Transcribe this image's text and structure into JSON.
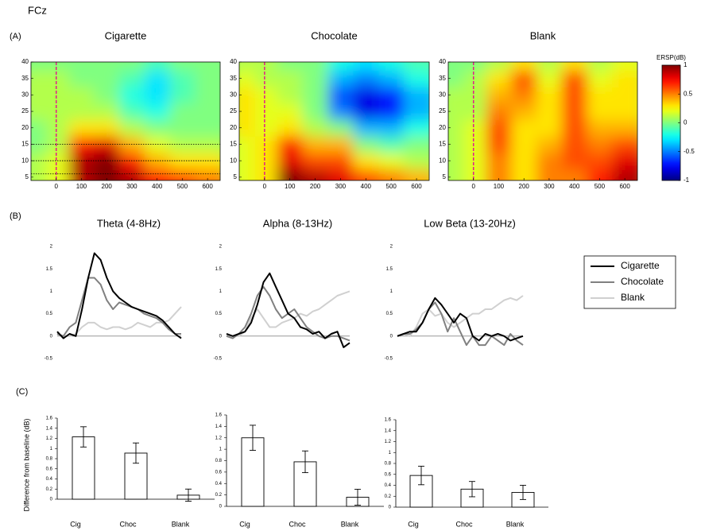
{
  "page_title": "FCz",
  "panel_labels": [
    "(A)",
    "(B)",
    "(C)"
  ],
  "colorbar": {
    "label": "ERSP(dB)",
    "clim": [
      -1,
      1
    ],
    "ticks": [
      -1,
      -0.5,
      0,
      0.5,
      1
    ]
  },
  "chart_data": [
    {
      "type": "heatmap",
      "title": "Cigarette",
      "x": [
        -75,
        0,
        100,
        200,
        300,
        400,
        500,
        600
      ],
      "y": [
        5,
        10,
        15,
        20,
        25,
        30,
        35,
        40
      ],
      "z": [
        [
          0.1,
          0.2,
          0.9,
          1.0,
          0.9,
          0.7,
          0.6,
          0.5
        ],
        [
          0.1,
          0.2,
          0.9,
          1.0,
          0.7,
          0.4,
          0.3,
          0.3
        ],
        [
          0.0,
          0.1,
          0.7,
          0.8,
          0.4,
          0.2,
          0.1,
          0.1
        ],
        [
          0.0,
          0.1,
          0.3,
          0.3,
          0.1,
          0.0,
          0.0,
          0.0
        ],
        [
          0.1,
          0.1,
          0.1,
          0.1,
          -0.1,
          -0.2,
          0.0,
          0.0
        ],
        [
          0.1,
          0.1,
          0.1,
          0.0,
          -0.2,
          -0.3,
          -0.1,
          0.0
        ],
        [
          0.1,
          0.1,
          0.0,
          0.0,
          -0.1,
          -0.3,
          -0.1,
          0.0
        ],
        [
          0.0,
          0.0,
          0.0,
          0.0,
          0.0,
          -0.1,
          0.0,
          0.0
        ]
      ],
      "xlim": [
        -100,
        650
      ],
      "xticks": [
        0,
        100,
        200,
        300,
        400,
        500,
        600
      ],
      "ylim": [
        4,
        40
      ],
      "yticks": [
        5,
        10,
        15,
        20,
        25,
        30,
        35,
        40
      ],
      "vline": 0,
      "hlines": [
        6,
        10,
        15
      ]
    },
    {
      "type": "heatmap",
      "title": "Chocolate",
      "x": [
        -75,
        0,
        100,
        200,
        300,
        400,
        500,
        600
      ],
      "y": [
        5,
        10,
        15,
        20,
        25,
        30,
        35,
        40
      ],
      "z": [
        [
          0.2,
          0.3,
          1.0,
          0.9,
          0.8,
          0.6,
          0.5,
          0.4
        ],
        [
          0.2,
          0.3,
          0.8,
          0.6,
          0.6,
          0.3,
          0.2,
          0.1
        ],
        [
          0.2,
          0.3,
          0.7,
          0.4,
          0.4,
          0.0,
          -0.1,
          0.0
        ],
        [
          0.3,
          0.2,
          0.3,
          0.1,
          0.0,
          -0.4,
          -0.4,
          -0.2
        ],
        [
          0.3,
          0.2,
          0.2,
          0.0,
          -0.5,
          -0.8,
          -0.7,
          -0.4
        ],
        [
          0.3,
          0.2,
          0.1,
          0.0,
          -0.6,
          -0.8,
          -0.7,
          -0.4
        ],
        [
          0.2,
          0.1,
          0.1,
          0.0,
          -0.4,
          -0.5,
          -0.4,
          -0.2
        ],
        [
          0.1,
          0.1,
          0.0,
          0.0,
          -0.2,
          -0.3,
          -0.2,
          -0.1
        ]
      ],
      "xlim": [
        -100,
        650
      ],
      "xticks": [
        0,
        100,
        200,
        300,
        400,
        500,
        600
      ],
      "ylim": [
        4,
        40
      ],
      "yticks": [
        5,
        10,
        15,
        20,
        25,
        30,
        35,
        40
      ],
      "vline": 0
    },
    {
      "type": "heatmap",
      "title": "Blank",
      "x": [
        -75,
        0,
        100,
        200,
        300,
        400,
        500,
        600
      ],
      "y": [
        5,
        10,
        15,
        20,
        25,
        30,
        35,
        40
      ],
      "z": [
        [
          0.1,
          0.2,
          0.5,
          0.3,
          0.5,
          0.5,
          0.7,
          0.9
        ],
        [
          0.1,
          0.2,
          0.5,
          0.3,
          0.5,
          0.6,
          0.6,
          0.8
        ],
        [
          0.1,
          0.2,
          0.6,
          0.3,
          0.4,
          0.6,
          0.5,
          0.6
        ],
        [
          0.1,
          0.2,
          0.6,
          0.3,
          0.3,
          0.6,
          0.4,
          0.4
        ],
        [
          0.1,
          0.1,
          0.5,
          0.4,
          0.3,
          0.6,
          0.3,
          0.3
        ],
        [
          0.1,
          0.1,
          0.4,
          0.5,
          0.3,
          0.6,
          0.3,
          0.3
        ],
        [
          0.0,
          0.1,
          0.3,
          0.6,
          0.2,
          0.6,
          0.2,
          0.3
        ],
        [
          0.0,
          0.0,
          0.1,
          0.3,
          0.1,
          0.3,
          0.1,
          0.2
        ]
      ],
      "xlim": [
        -100,
        650
      ],
      "xticks": [
        0,
        100,
        200,
        300,
        400,
        500,
        600
      ],
      "ylim": [
        4,
        40
      ],
      "yticks": [
        5,
        10,
        15,
        20,
        25,
        30,
        35,
        40
      ],
      "vline": 0
    },
    {
      "type": "line",
      "title": "Theta (4-8Hz)",
      "ylim": [
        -0.5,
        2
      ],
      "yticks": [
        -0.5,
        0,
        0.5,
        1,
        1.5,
        2
      ],
      "legend": "right",
      "series": [
        {
          "name": "Cigarette",
          "color": "#000000",
          "values": [
            0.1,
            -0.05,
            0.05,
            0.0,
            0.6,
            1.3,
            1.85,
            1.7,
            1.3,
            1.0,
            0.85,
            0.75,
            0.65,
            0.6,
            0.55,
            0.5,
            0.45,
            0.35,
            0.2,
            0.05,
            -0.05
          ]
        },
        {
          "name": "Chocolate",
          "color": "#808080",
          "values": [
            0.05,
            0.0,
            0.2,
            0.3,
            0.8,
            1.3,
            1.3,
            1.15,
            0.8,
            0.6,
            0.75,
            0.7,
            0.65,
            0.6,
            0.5,
            0.45,
            0.4,
            0.3,
            0.15,
            0.05,
            0.05
          ]
        },
        {
          "name": "Blank",
          "color": "#d0d0d0",
          "values": [
            0.05,
            0.0,
            0.0,
            0.05,
            0.2,
            0.3,
            0.3,
            0.2,
            0.15,
            0.2,
            0.2,
            0.15,
            0.2,
            0.3,
            0.25,
            0.2,
            0.3,
            0.3,
            0.35,
            0.5,
            0.65
          ]
        }
      ]
    },
    {
      "type": "line",
      "title": "Alpha (8-13Hz)",
      "ylim": [
        -0.5,
        2
      ],
      "yticks": [
        -0.5,
        0,
        0.5,
        1,
        1.5,
        2
      ],
      "series": [
        {
          "name": "Cigarette",
          "color": "#000000",
          "values": [
            0.05,
            0.0,
            0.05,
            0.1,
            0.3,
            0.7,
            1.2,
            1.4,
            1.1,
            0.8,
            0.5,
            0.4,
            0.2,
            0.15,
            0.05,
            0.1,
            -0.05,
            0.05,
            0.1,
            -0.25,
            -0.15
          ]
        },
        {
          "name": "Chocolate",
          "color": "#808080",
          "values": [
            0.0,
            -0.05,
            0.05,
            0.2,
            0.5,
            0.9,
            1.1,
            0.9,
            0.6,
            0.4,
            0.5,
            0.6,
            0.4,
            0.2,
            0.1,
            0.0,
            -0.05,
            0.0,
            0.0,
            -0.05,
            -0.1
          ]
        },
        {
          "name": "Blank",
          "color": "#d0d0d0",
          "values": [
            0.0,
            0.0,
            0.0,
            0.1,
            0.4,
            0.6,
            0.4,
            0.2,
            0.2,
            0.3,
            0.35,
            0.4,
            0.5,
            0.45,
            0.55,
            0.6,
            0.7,
            0.8,
            0.9,
            0.95,
            1.0
          ]
        }
      ]
    },
    {
      "type": "line",
      "title": "Low Beta (13-20Hz)",
      "ylim": [
        -0.5,
        2
      ],
      "yticks": [
        -0.5,
        0,
        0.5,
        1,
        1.5,
        2
      ],
      "series": [
        {
          "name": "Cigarette",
          "color": "#000000",
          "values": [
            0.0,
            0.05,
            0.1,
            0.1,
            0.3,
            0.6,
            0.85,
            0.7,
            0.5,
            0.3,
            0.5,
            0.4,
            0.0,
            -0.1,
            0.05,
            0.0,
            0.05,
            0.0,
            -0.1,
            -0.05,
            0.0
          ]
        },
        {
          "name": "Chocolate",
          "color": "#808080",
          "values": [
            0.0,
            0.05,
            0.05,
            0.15,
            0.3,
            0.6,
            0.75,
            0.5,
            0.1,
            0.4,
            0.1,
            -0.2,
            0.0,
            -0.2,
            -0.2,
            0.0,
            -0.1,
            -0.2,
            0.05,
            -0.1,
            -0.2
          ]
        },
        {
          "name": "Blank",
          "color": "#d0d0d0",
          "values": [
            0.0,
            0.05,
            0.0,
            0.2,
            0.5,
            0.6,
            0.45,
            0.5,
            0.3,
            0.2,
            0.3,
            0.4,
            0.5,
            0.5,
            0.6,
            0.6,
            0.7,
            0.8,
            0.85,
            0.8,
            0.9
          ]
        }
      ]
    },
    {
      "type": "bar",
      "y_label": "Difference from baseline (dB)",
      "categories": [
        "Cig",
        "Choc",
        "Blank"
      ],
      "values": [
        1.23,
        0.91,
        0.08
      ],
      "errors": [
        0.2,
        0.2,
        0.12
      ],
      "color": "#ffffff",
      "ylim": [
        0,
        1.6
      ],
      "yticks": [
        0,
        0.2,
        0.4,
        0.6,
        0.8,
        1,
        1.2,
        1.4,
        1.6
      ]
    },
    {
      "type": "bar",
      "categories": [
        "Cig",
        "Choc",
        "Blank"
      ],
      "values": [
        1.2,
        0.78,
        0.16
      ],
      "errors": [
        0.22,
        0.19,
        0.14
      ],
      "color": "#ffffff",
      "ylim": [
        0,
        1.6
      ],
      "yticks": [
        0,
        0.2,
        0.4,
        0.6,
        0.8,
        1,
        1.2,
        1.4,
        1.6
      ]
    },
    {
      "type": "bar",
      "categories": [
        "Cig",
        "Choc",
        "Blank"
      ],
      "values": [
        0.58,
        0.33,
        0.27
      ],
      "errors": [
        0.17,
        0.14,
        0.13
      ],
      "color": "#ffffff",
      "ylim": [
        0,
        1.6
      ],
      "yticks": [
        0,
        0.2,
        0.4,
        0.6,
        0.8,
        1,
        1.2,
        1.4,
        1.6
      ]
    }
  ]
}
